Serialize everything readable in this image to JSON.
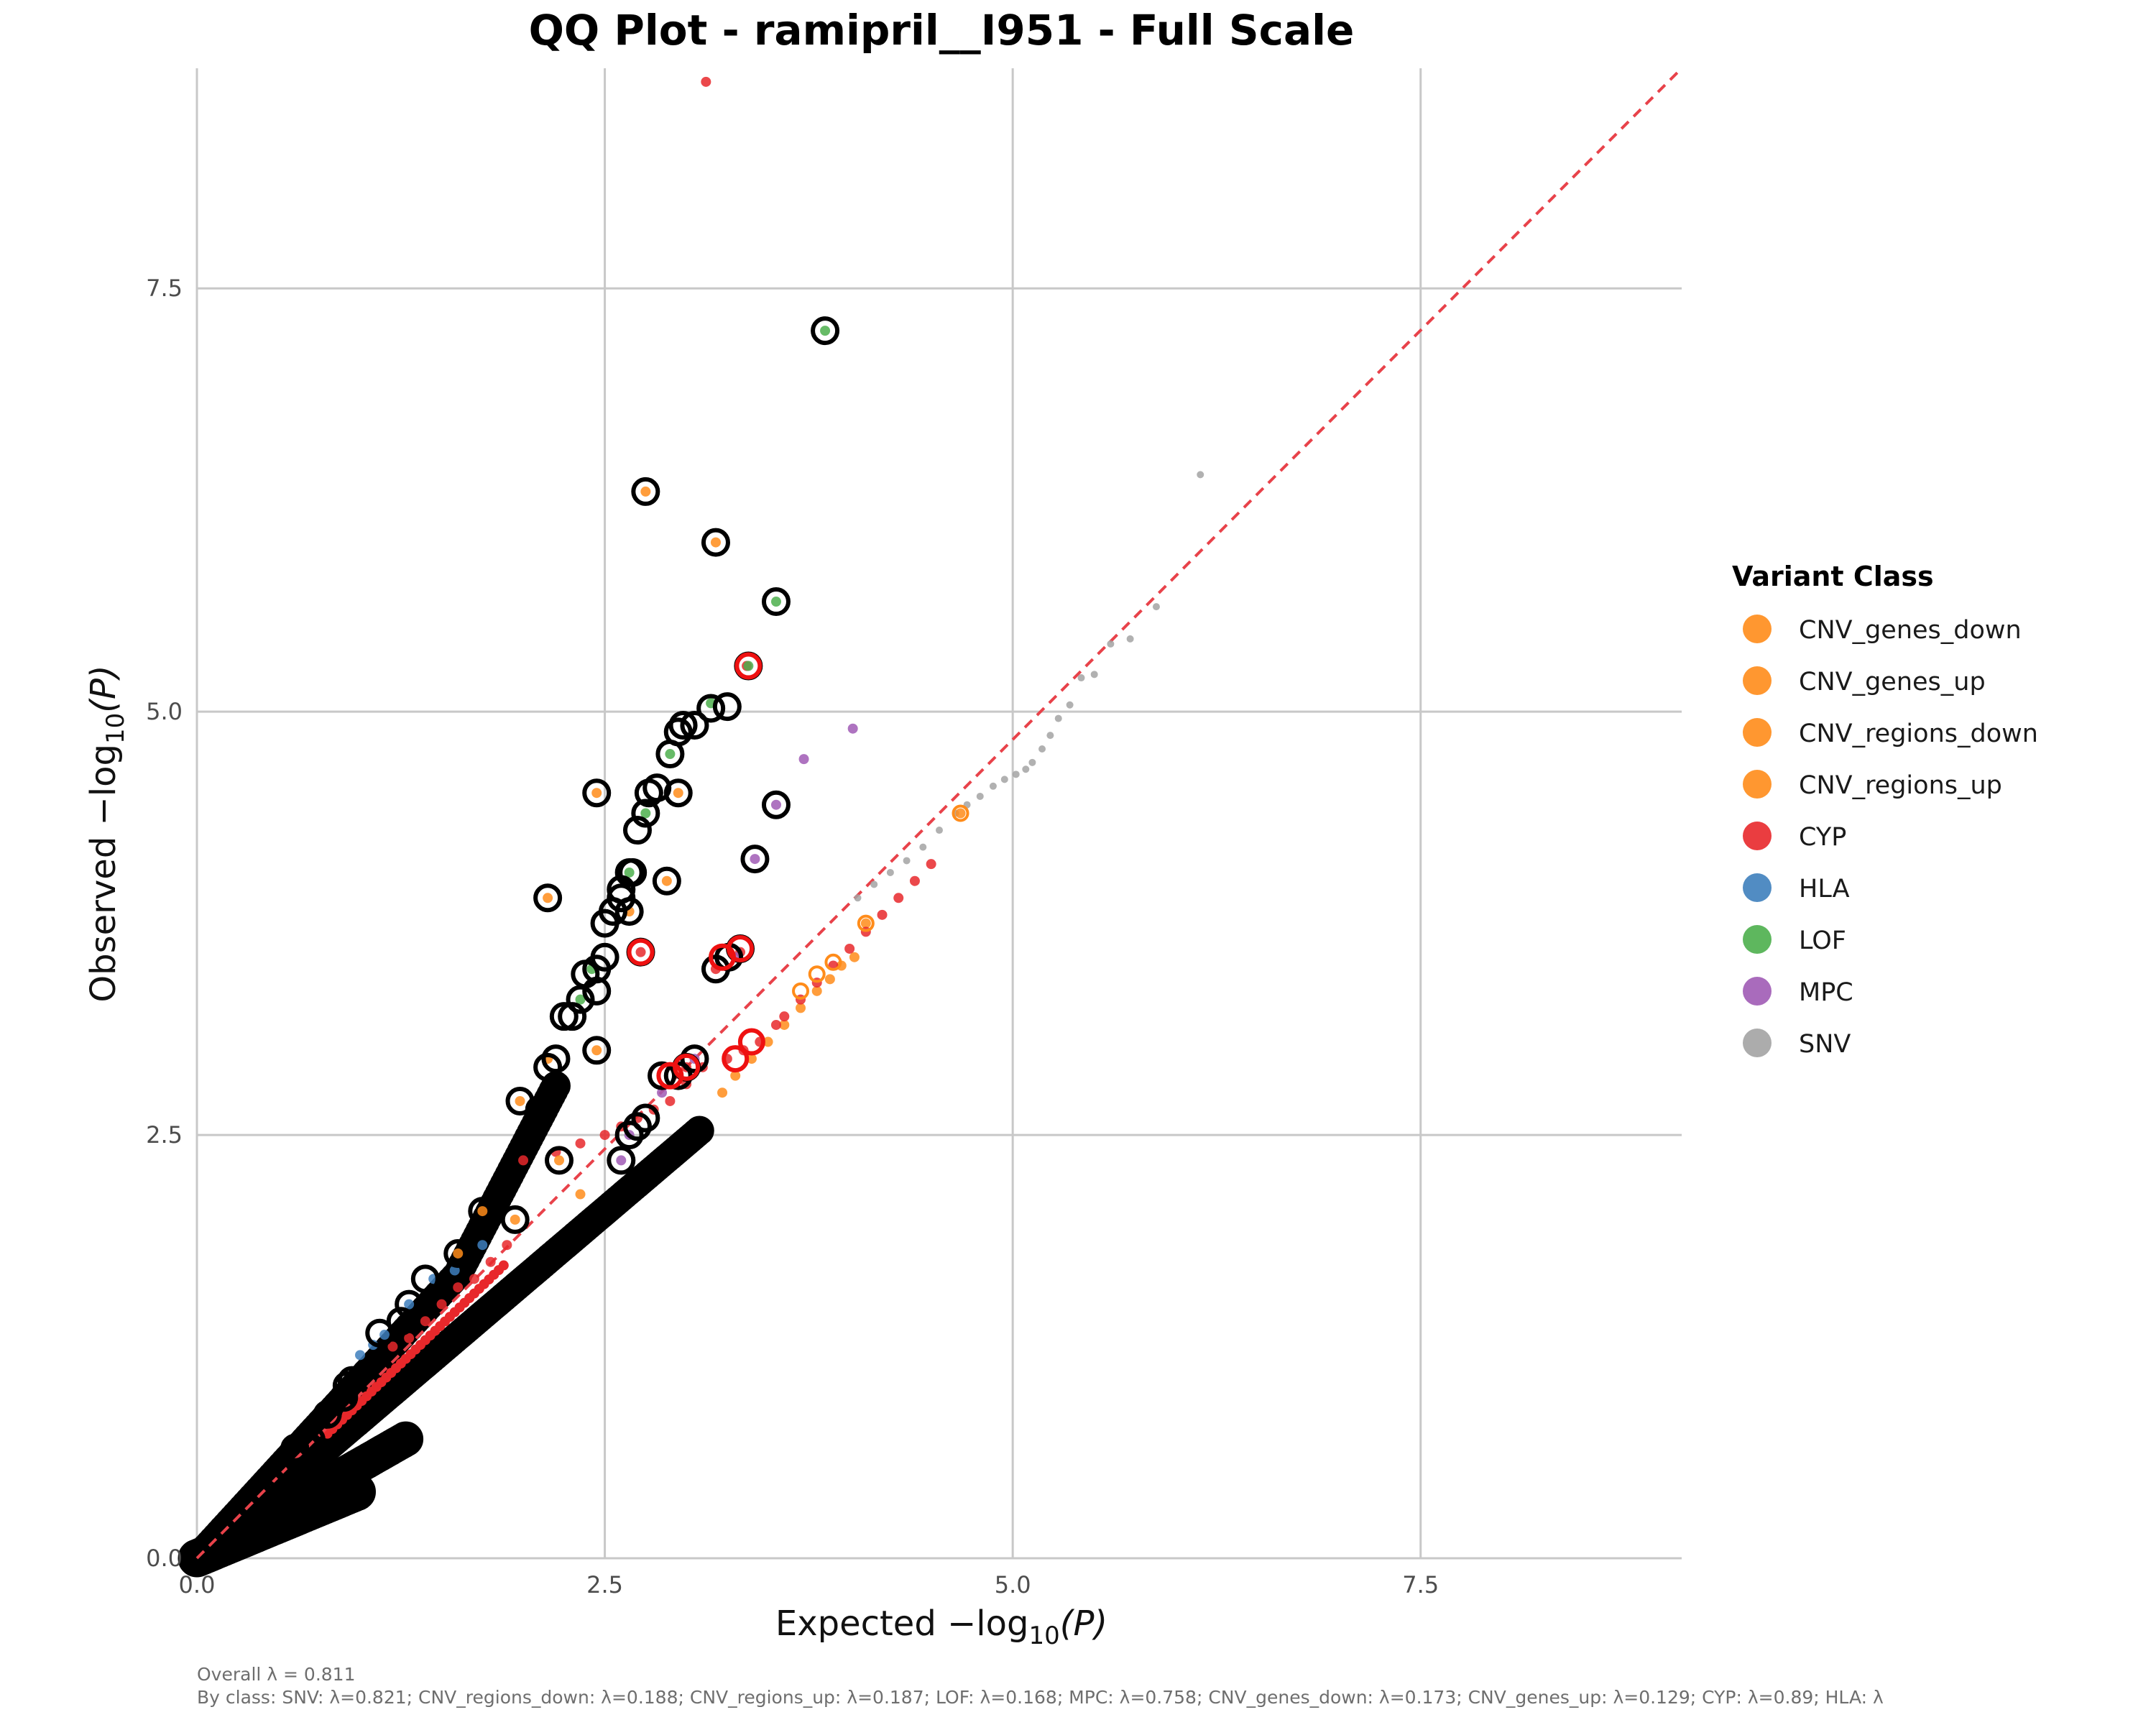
{
  "chart_data": {
    "type": "scatter",
    "title": "QQ Plot - ramipril__I951 - Full Scale",
    "xlabel": {
      "prefix": "Expected −log",
      "sub": "10",
      "suffix": "(P)"
    },
    "ylabel": {
      "prefix": "Observed −log",
      "sub": "10",
      "suffix": "(P)"
    },
    "xlim": [
      0,
      9.1
    ],
    "ylim": [
      0,
      8.8
    ],
    "x_ticks": [
      {
        "value": 0,
        "label": "0.0"
      },
      {
        "value": 2.5,
        "label": "2.5"
      },
      {
        "value": 5,
        "label": "5.0"
      },
      {
        "value": 7.5,
        "label": "7.5"
      }
    ],
    "y_ticks": [
      {
        "value": 0,
        "label": "0.0"
      },
      {
        "value": 2.5,
        "label": "2.5"
      },
      {
        "value": 5,
        "label": "5.0"
      },
      {
        "value": 7.5,
        "label": "7.5"
      }
    ],
    "grid": true,
    "reference_line": {
      "from": [
        0,
        0
      ],
      "to": [
        9.1,
        9.1
      ],
      "color": "#e8424a",
      "style": "dashed"
    },
    "legend": {
      "title": "Variant Class",
      "placement": "right",
      "entries": [
        {
          "label": "CNV_genes_down",
          "color": "#ff8c1a"
        },
        {
          "label": "CNV_genes_up",
          "color": "#ff8c1a"
        },
        {
          "label": "CNV_regions_down",
          "color": "#ff8c1a"
        },
        {
          "label": "CNV_regions_up",
          "color": "#ff8c1a"
        },
        {
          "label": "CYP",
          "color": "#e8282b"
        },
        {
          "label": "HLA",
          "color": "#3e7fbd"
        },
        {
          "label": "LOF",
          "color": "#4caf4c"
        },
        {
          "label": "MPC",
          "color": "#a05bb5"
        },
        {
          "label": "SNV",
          "color": "#a3a3a3"
        }
      ]
    },
    "caption_lines": [
      "Overall λ = 0.811",
      "By class: SNV: λ=0.821; CNV_regions_down: λ=0.188; CNV_regions_up: λ=0.187; LOF: λ=0.168; MPC: λ=0.758; CNV_genes_down: λ=0.173; CNV_genes_up: λ=0.129; CYP: λ=0.89; HLA: λ"
    ],
    "series": [
      {
        "name": "SNV",
        "color": "#a3a3a3",
        "points": [
          [
            4.05,
            3.9
          ],
          [
            4.15,
            3.98
          ],
          [
            4.25,
            4.05
          ],
          [
            4.35,
            4.12
          ],
          [
            4.45,
            4.2
          ],
          [
            4.55,
            4.3
          ],
          [
            4.65,
            4.4
          ],
          [
            4.72,
            4.45
          ],
          [
            4.8,
            4.5
          ],
          [
            4.88,
            4.56
          ],
          [
            4.95,
            4.6
          ],
          [
            5.02,
            4.63
          ],
          [
            5.08,
            4.66
          ],
          [
            5.12,
            4.7
          ],
          [
            5.18,
            4.78
          ],
          [
            5.23,
            4.86
          ],
          [
            5.28,
            4.96
          ],
          [
            5.35,
            5.04
          ],
          [
            5.42,
            5.2
          ],
          [
            5.5,
            5.22
          ],
          [
            5.6,
            5.4
          ],
          [
            5.72,
            5.43
          ],
          [
            5.88,
            5.62
          ],
          [
            6.15,
            6.4
          ]
        ]
      },
      {
        "name": "CNV_regions_up",
        "color": "#ff8c1a",
        "points": [
          [
            3.22,
            2.75
          ],
          [
            3.3,
            2.85
          ],
          [
            3.4,
            2.95
          ],
          [
            3.5,
            3.05
          ],
          [
            3.6,
            3.15
          ],
          [
            3.7,
            3.25
          ],
          [
            3.8,
            3.35
          ],
          [
            3.88,
            3.42
          ],
          [
            3.95,
            3.5
          ],
          [
            4.03,
            3.55
          ],
          [
            4.1,
            3.75
          ],
          [
            4.68,
            4.4
          ]
        ]
      },
      {
        "name": "CYP",
        "color": "#e8282b",
        "points": [
          [
            3.12,
            8.72
          ],
          [
            2.0,
            2.35
          ],
          [
            2.2,
            2.4
          ],
          [
            2.35,
            2.45
          ],
          [
            2.5,
            2.5
          ],
          [
            2.6,
            2.55
          ],
          [
            2.7,
            2.6
          ],
          [
            2.8,
            2.65
          ],
          [
            2.9,
            2.7
          ],
          [
            3.0,
            2.8
          ],
          [
            3.1,
            2.9
          ],
          [
            3.25,
            2.95
          ],
          [
            3.35,
            3.0
          ],
          [
            3.45,
            3.05
          ],
          [
            3.55,
            3.15
          ],
          [
            3.6,
            3.2
          ],
          [
            3.7,
            3.3
          ],
          [
            3.8,
            3.4
          ],
          [
            3.9,
            3.5
          ],
          [
            4.0,
            3.6
          ],
          [
            4.1,
            3.7
          ],
          [
            4.2,
            3.8
          ],
          [
            4.3,
            3.9
          ],
          [
            4.4,
            4.0
          ],
          [
            4.5,
            4.1
          ],
          [
            1.2,
            1.25
          ],
          [
            1.3,
            1.3
          ],
          [
            1.4,
            1.4
          ],
          [
            1.5,
            1.5
          ],
          [
            1.6,
            1.6
          ],
          [
            1.7,
            1.65
          ],
          [
            1.8,
            1.75
          ],
          [
            1.9,
            1.85
          ],
          [
            3.37,
            5.27
          ],
          [
            2.72,
            3.58
          ],
          [
            3.33,
            3.58
          ],
          [
            3.18,
            3.48
          ],
          [
            3.0,
            2.9
          ]
        ]
      },
      {
        "name": "HLA",
        "color": "#3e7fbd",
        "points": [
          [
            1.0,
            1.2
          ],
          [
            1.08,
            1.26
          ],
          [
            1.15,
            1.32
          ],
          [
            1.3,
            1.5
          ],
          [
            1.45,
            1.65
          ],
          [
            1.58,
            1.7
          ],
          [
            1.75,
            1.85
          ]
        ]
      },
      {
        "name": "LOF",
        "color": "#4caf4c",
        "points": [
          [
            3.85,
            7.25
          ],
          [
            3.55,
            5.65
          ],
          [
            3.38,
            5.27
          ],
          [
            3.15,
            5.05
          ],
          [
            2.9,
            4.75
          ],
          [
            2.75,
            4.4
          ],
          [
            2.65,
            4.05
          ],
          [
            2.42,
            3.48
          ],
          [
            2.35,
            3.3
          ]
        ]
      },
      {
        "name": "MPC",
        "color": "#a05bb5",
        "points": [
          [
            4.02,
            4.9
          ],
          [
            3.72,
            4.72
          ],
          [
            3.55,
            4.45
          ],
          [
            3.42,
            4.13
          ],
          [
            3.3,
            3.55
          ],
          [
            3.05,
            2.95
          ],
          [
            2.85,
            2.75
          ],
          [
            2.65,
            2.5
          ],
          [
            2.6,
            2.35
          ]
        ]
      },
      {
        "name": "CNV_genes_down",
        "color": "#ff8c1a",
        "points": [
          [
            2.75,
            6.3
          ],
          [
            3.18,
            6.0
          ],
          [
            2.45,
            4.52
          ],
          [
            2.95,
            4.52
          ],
          [
            2.88,
            4.0
          ],
          [
            2.15,
            3.9
          ],
          [
            2.65,
            3.82
          ],
          [
            2.45,
            3.0
          ],
          [
            2.15,
            2.95
          ],
          [
            1.98,
            2.7
          ],
          [
            2.22,
            2.35
          ],
          [
            2.35,
            2.15
          ],
          [
            1.95,
            2.0
          ],
          [
            1.75,
            2.05
          ],
          [
            1.6,
            1.8
          ]
        ]
      }
    ],
    "highlight_rings": [
      [
        3.85,
        7.25
      ],
      [
        2.75,
        6.3
      ],
      [
        3.18,
        6.0
      ],
      [
        3.55,
        5.65
      ],
      [
        3.38,
        5.27
      ],
      [
        3.15,
        5.02
      ],
      [
        3.25,
        5.03
      ],
      [
        2.98,
        4.92
      ],
      [
        3.05,
        4.92
      ],
      [
        2.95,
        4.88
      ],
      [
        2.9,
        4.75
      ],
      [
        2.45,
        4.52
      ],
      [
        2.95,
        4.52
      ],
      [
        2.82,
        4.55
      ],
      [
        2.77,
        4.52
      ],
      [
        2.75,
        4.4
      ],
      [
        2.7,
        4.3
      ],
      [
        3.55,
        4.45
      ],
      [
        3.42,
        4.13
      ],
      [
        2.65,
        4.05
      ],
      [
        2.67,
        4.05
      ],
      [
        2.88,
        4.0
      ],
      [
        2.6,
        3.95
      ],
      [
        2.6,
        3.9
      ],
      [
        2.15,
        3.9
      ],
      [
        2.55,
        3.82
      ],
      [
        2.65,
        3.82
      ],
      [
        2.5,
        3.75
      ],
      [
        2.72,
        3.58
      ],
      [
        3.33,
        3.6
      ],
      [
        2.5,
        3.55
      ],
      [
        2.45,
        3.48
      ],
      [
        3.26,
        3.55
      ],
      [
        3.18,
        3.48
      ],
      [
        2.38,
        3.45
      ],
      [
        2.45,
        3.35
      ],
      [
        2.35,
        3.3
      ],
      [
        2.3,
        3.2
      ],
      [
        2.25,
        3.2
      ],
      [
        2.15,
        2.9
      ],
      [
        2.2,
        2.95
      ],
      [
        2.45,
        3.0
      ],
      [
        3.05,
        2.95
      ],
      [
        2.95,
        2.85
      ],
      [
        3.0,
        2.9
      ],
      [
        2.85,
        2.85
      ],
      [
        1.98,
        2.7
      ],
      [
        2.1,
        2.65
      ],
      [
        2.75,
        2.6
      ],
      [
        2.7,
        2.55
      ],
      [
        2.65,
        2.5
      ],
      [
        2.6,
        2.35
      ],
      [
        2.22,
        2.35
      ],
      [
        1.88,
        2.2
      ],
      [
        1.75,
        2.05
      ],
      [
        1.95,
        2.0
      ],
      [
        1.6,
        1.8
      ],
      [
        1.4,
        1.65
      ],
      [
        1.3,
        1.5
      ],
      [
        1.25,
        1.4
      ],
      [
        1.12,
        1.33
      ],
      [
        0.95,
        1.05
      ],
      [
        0.92,
        1.02
      ],
      [
        0.9,
        0.95
      ],
      [
        0.8,
        0.85
      ],
      [
        0.7,
        0.7
      ],
      [
        0.6,
        0.65
      ],
      [
        0.5,
        0.5
      ]
    ],
    "highlight_ring_colors": {
      "default": "#000000",
      "cyp": "#ee1111"
    },
    "cyp_rings": [
      [
        3.38,
        5.27
      ],
      [
        2.72,
        3.58
      ],
      [
        3.33,
        3.6
      ],
      [
        3.0,
        2.9
      ],
      [
        2.9,
        2.85
      ],
      [
        3.3,
        2.95
      ],
      [
        3.4,
        3.05
      ],
      [
        3.22,
        3.55
      ]
    ],
    "cnv_up_rings": [
      [
        4.68,
        4.4
      ],
      [
        4.1,
        3.75
      ],
      [
        3.9,
        3.52
      ],
      [
        3.8,
        3.45
      ],
      [
        3.7,
        3.35
      ]
    ]
  }
}
